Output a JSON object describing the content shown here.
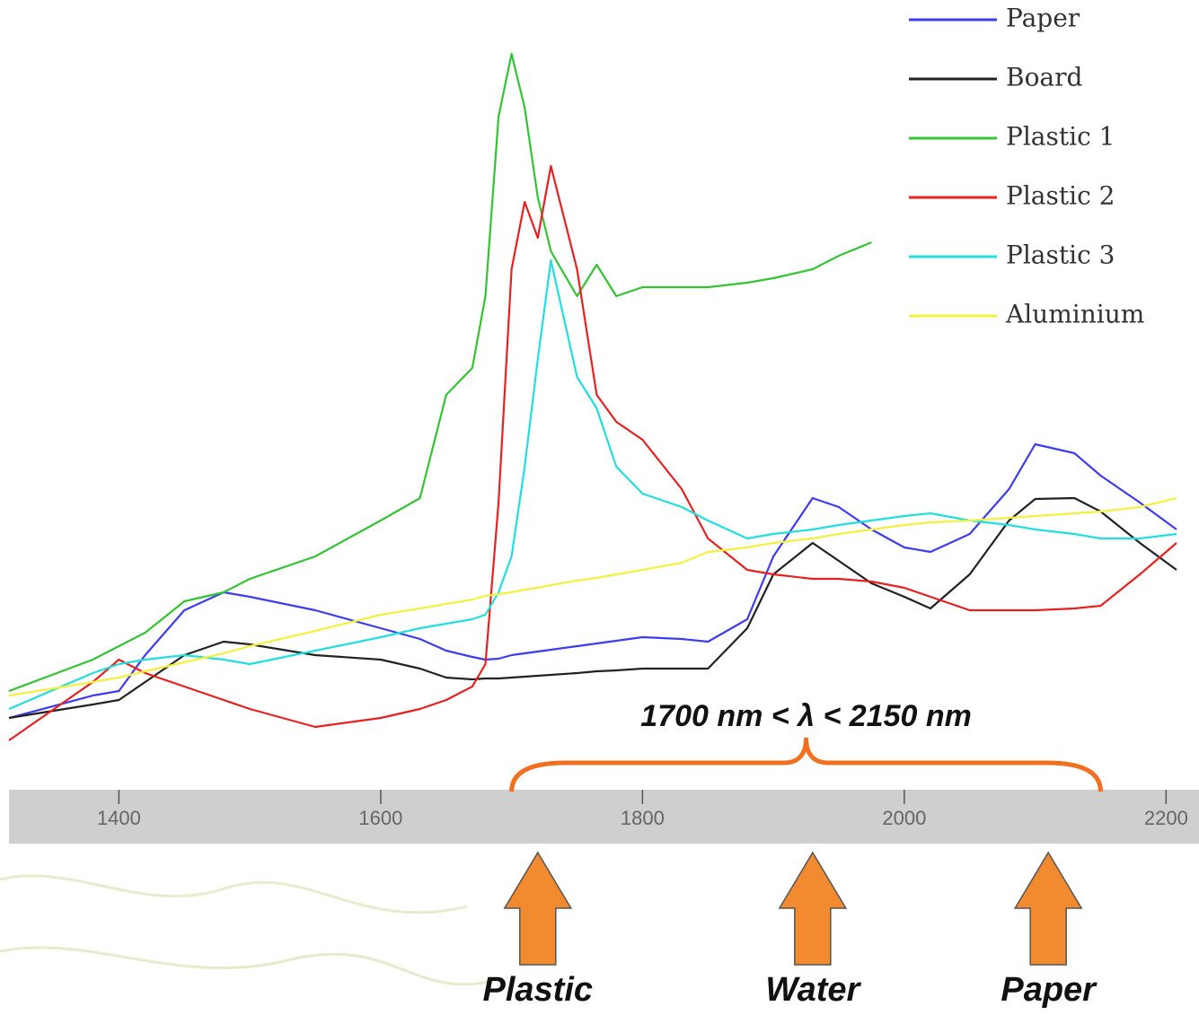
{
  "chart_data": {
    "type": "line",
    "x": [
      1316,
      1380,
      1400,
      1420,
      1450,
      1480,
      1500,
      1550,
      1600,
      1630,
      1650,
      1670,
      1680,
      1690,
      1700,
      1710,
      1720,
      1730,
      1750,
      1765,
      1780,
      1800,
      1830,
      1850,
      1880,
      1900,
      1930,
      1950,
      1975,
      2000,
      2020,
      2050,
      2080,
      2100,
      2130,
      2150,
      2180,
      2208
    ],
    "series": [
      {
        "name": "Paper",
        "color": "#3c3cf0",
        "values": [
          80,
          105,
          110,
          150,
          200,
          220,
          215,
          200,
          180,
          168,
          155,
          148,
          145,
          146,
          150,
          152,
          154,
          156,
          160,
          163,
          166,
          170,
          168,
          165,
          190,
          260,
          325,
          315,
          290,
          270,
          265,
          285,
          335,
          385,
          375,
          350,
          320,
          290
        ]
      },
      {
        "name": "Board",
        "color": "#222222",
        "values": [
          80,
          95,
          100,
          120,
          150,
          165,
          162,
          150,
          145,
          135,
          125,
          123,
          124,
          124,
          125,
          126,
          127,
          128,
          130,
          132,
          133,
          135,
          135,
          135,
          180,
          240,
          275,
          255,
          230,
          215,
          202,
          240,
          300,
          324,
          325,
          310,
          275,
          245
        ]
      },
      {
        "name": "Plastic 1",
        "color": "#33c433",
        "values": [
          110,
          145,
          160,
          175,
          210,
          220,
          235,
          260,
          300,
          325,
          440,
          470,
          550,
          750,
          820,
          760,
          660,
          600,
          550,
          585,
          550,
          560,
          560,
          560,
          565,
          570,
          580,
          595,
          610,
          null,
          null,
          null,
          null,
          null,
          null,
          null,
          null,
          null
        ]
      },
      {
        "name": "Plastic 2",
        "color": "#e82020",
        "values": [
          55,
          120,
          145,
          130,
          115,
          100,
          90,
          70,
          80,
          90,
          100,
          115,
          140,
          320,
          580,
          655,
          615,
          695,
          580,
          440,
          410,
          390,
          335,
          280,
          245,
          240,
          235,
          235,
          232,
          225,
          215,
          200,
          200,
          200,
          202,
          205,
          240,
          275
        ]
      },
      {
        "name": "Plastic 3",
        "color": "#22dede",
        "values": [
          90,
          130,
          140,
          145,
          150,
          145,
          140,
          155,
          170,
          180,
          185,
          190,
          195,
          220,
          260,
          360,
          480,
          590,
          460,
          425,
          360,
          330,
          315,
          300,
          280,
          285,
          290,
          295,
          300,
          305,
          308,
          300,
          295,
          290,
          285,
          280,
          280,
          285
        ]
      },
      {
        "name": "Aluminium",
        "color": "#f4f040",
        "values": [
          105,
          120,
          125,
          132,
          142,
          152,
          160,
          177,
          195,
          202,
          207,
          212,
          216,
          218,
          220,
          223,
          225,
          228,
          233,
          236,
          240,
          245,
          253,
          265,
          270,
          275,
          280,
          285,
          290,
          295,
          298,
          300,
          303,
          305,
          308,
          310,
          315,
          325
        ]
      }
    ],
    "xlim": [
      1316,
      2208
    ],
    "xticks": [
      1400,
      1600,
      1800,
      2000,
      2200
    ],
    "ylim": [
      0,
      880
    ],
    "legend": "top-right",
    "annotations": {
      "range_label": "1700 nm < λ < 2150 nm",
      "range": [
        1700,
        2150
      ],
      "range_color": "#f07020",
      "arrows": [
        {
          "x": 1720,
          "label": "Plastic"
        },
        {
          "x": 1930,
          "label": "Water"
        },
        {
          "x": 2110,
          "label": "Paper"
        }
      ],
      "arrow_color": "#f28a30"
    }
  }
}
